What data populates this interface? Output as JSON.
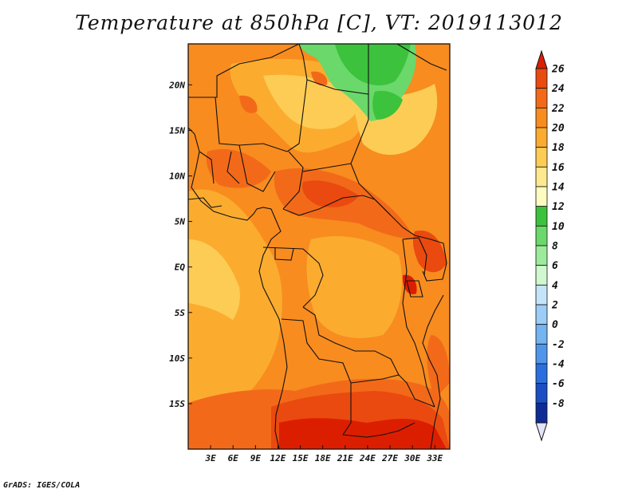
{
  "title": "Temperature at 850hPa [C], VT: 2019113012",
  "credit": "GrADS: IGES/COLA",
  "map": {
    "lon_range": [
      0,
      35
    ],
    "lat_range": [
      -20,
      24.5
    ],
    "x_ticks": [
      {
        "lon": 3,
        "label": "3E"
      },
      {
        "lon": 6,
        "label": "6E"
      },
      {
        "lon": 9,
        "label": "9E"
      },
      {
        "lon": 12,
        "label": "12E"
      },
      {
        "lon": 15,
        "label": "15E"
      },
      {
        "lon": 18,
        "label": "18E"
      },
      {
        "lon": 21,
        "label": "21E"
      },
      {
        "lon": 24,
        "label": "24E"
      },
      {
        "lon": 27,
        "label": "27E"
      },
      {
        "lon": 30,
        "label": "30E"
      },
      {
        "lon": 33,
        "label": "33E"
      }
    ],
    "y_ticks": [
      {
        "lat": 20,
        "label": "20N"
      },
      {
        "lat": 15,
        "label": "15N"
      },
      {
        "lat": 10,
        "label": "10N"
      },
      {
        "lat": 5,
        "label": "5N"
      },
      {
        "lat": 0,
        "label": "EQ"
      },
      {
        "lat": -5,
        "label": "5S"
      },
      {
        "lat": -10,
        "label": "10S"
      },
      {
        "lat": -15,
        "label": "15S"
      }
    ]
  },
  "colorbar": {
    "labels": [
      "26",
      "24",
      "22",
      "20",
      "18",
      "16",
      "14",
      "12",
      "10",
      "8",
      "6",
      "4",
      "2",
      "0",
      "-2",
      "-4",
      "-6",
      "-8"
    ],
    "colors_top_to_bottom": [
      "#dc1e00",
      "#ea4a0f",
      "#f26a19",
      "#f88c1f",
      "#fbac2f",
      "#fdcc55",
      "#fde98e",
      "#fdfbc0",
      "#3cc23c",
      "#6ad86a",
      "#9ceb9c",
      "#d0f7cf",
      "#c4e4fa",
      "#9ccdf6",
      "#73b4f1",
      "#4f96ea",
      "#2a6fdd",
      "#1b4ec3",
      "#0f2c96",
      "#08135a"
    ],
    "top_cap": "#dc1e00",
    "bottom_cap": "#e4e4f8"
  }
}
